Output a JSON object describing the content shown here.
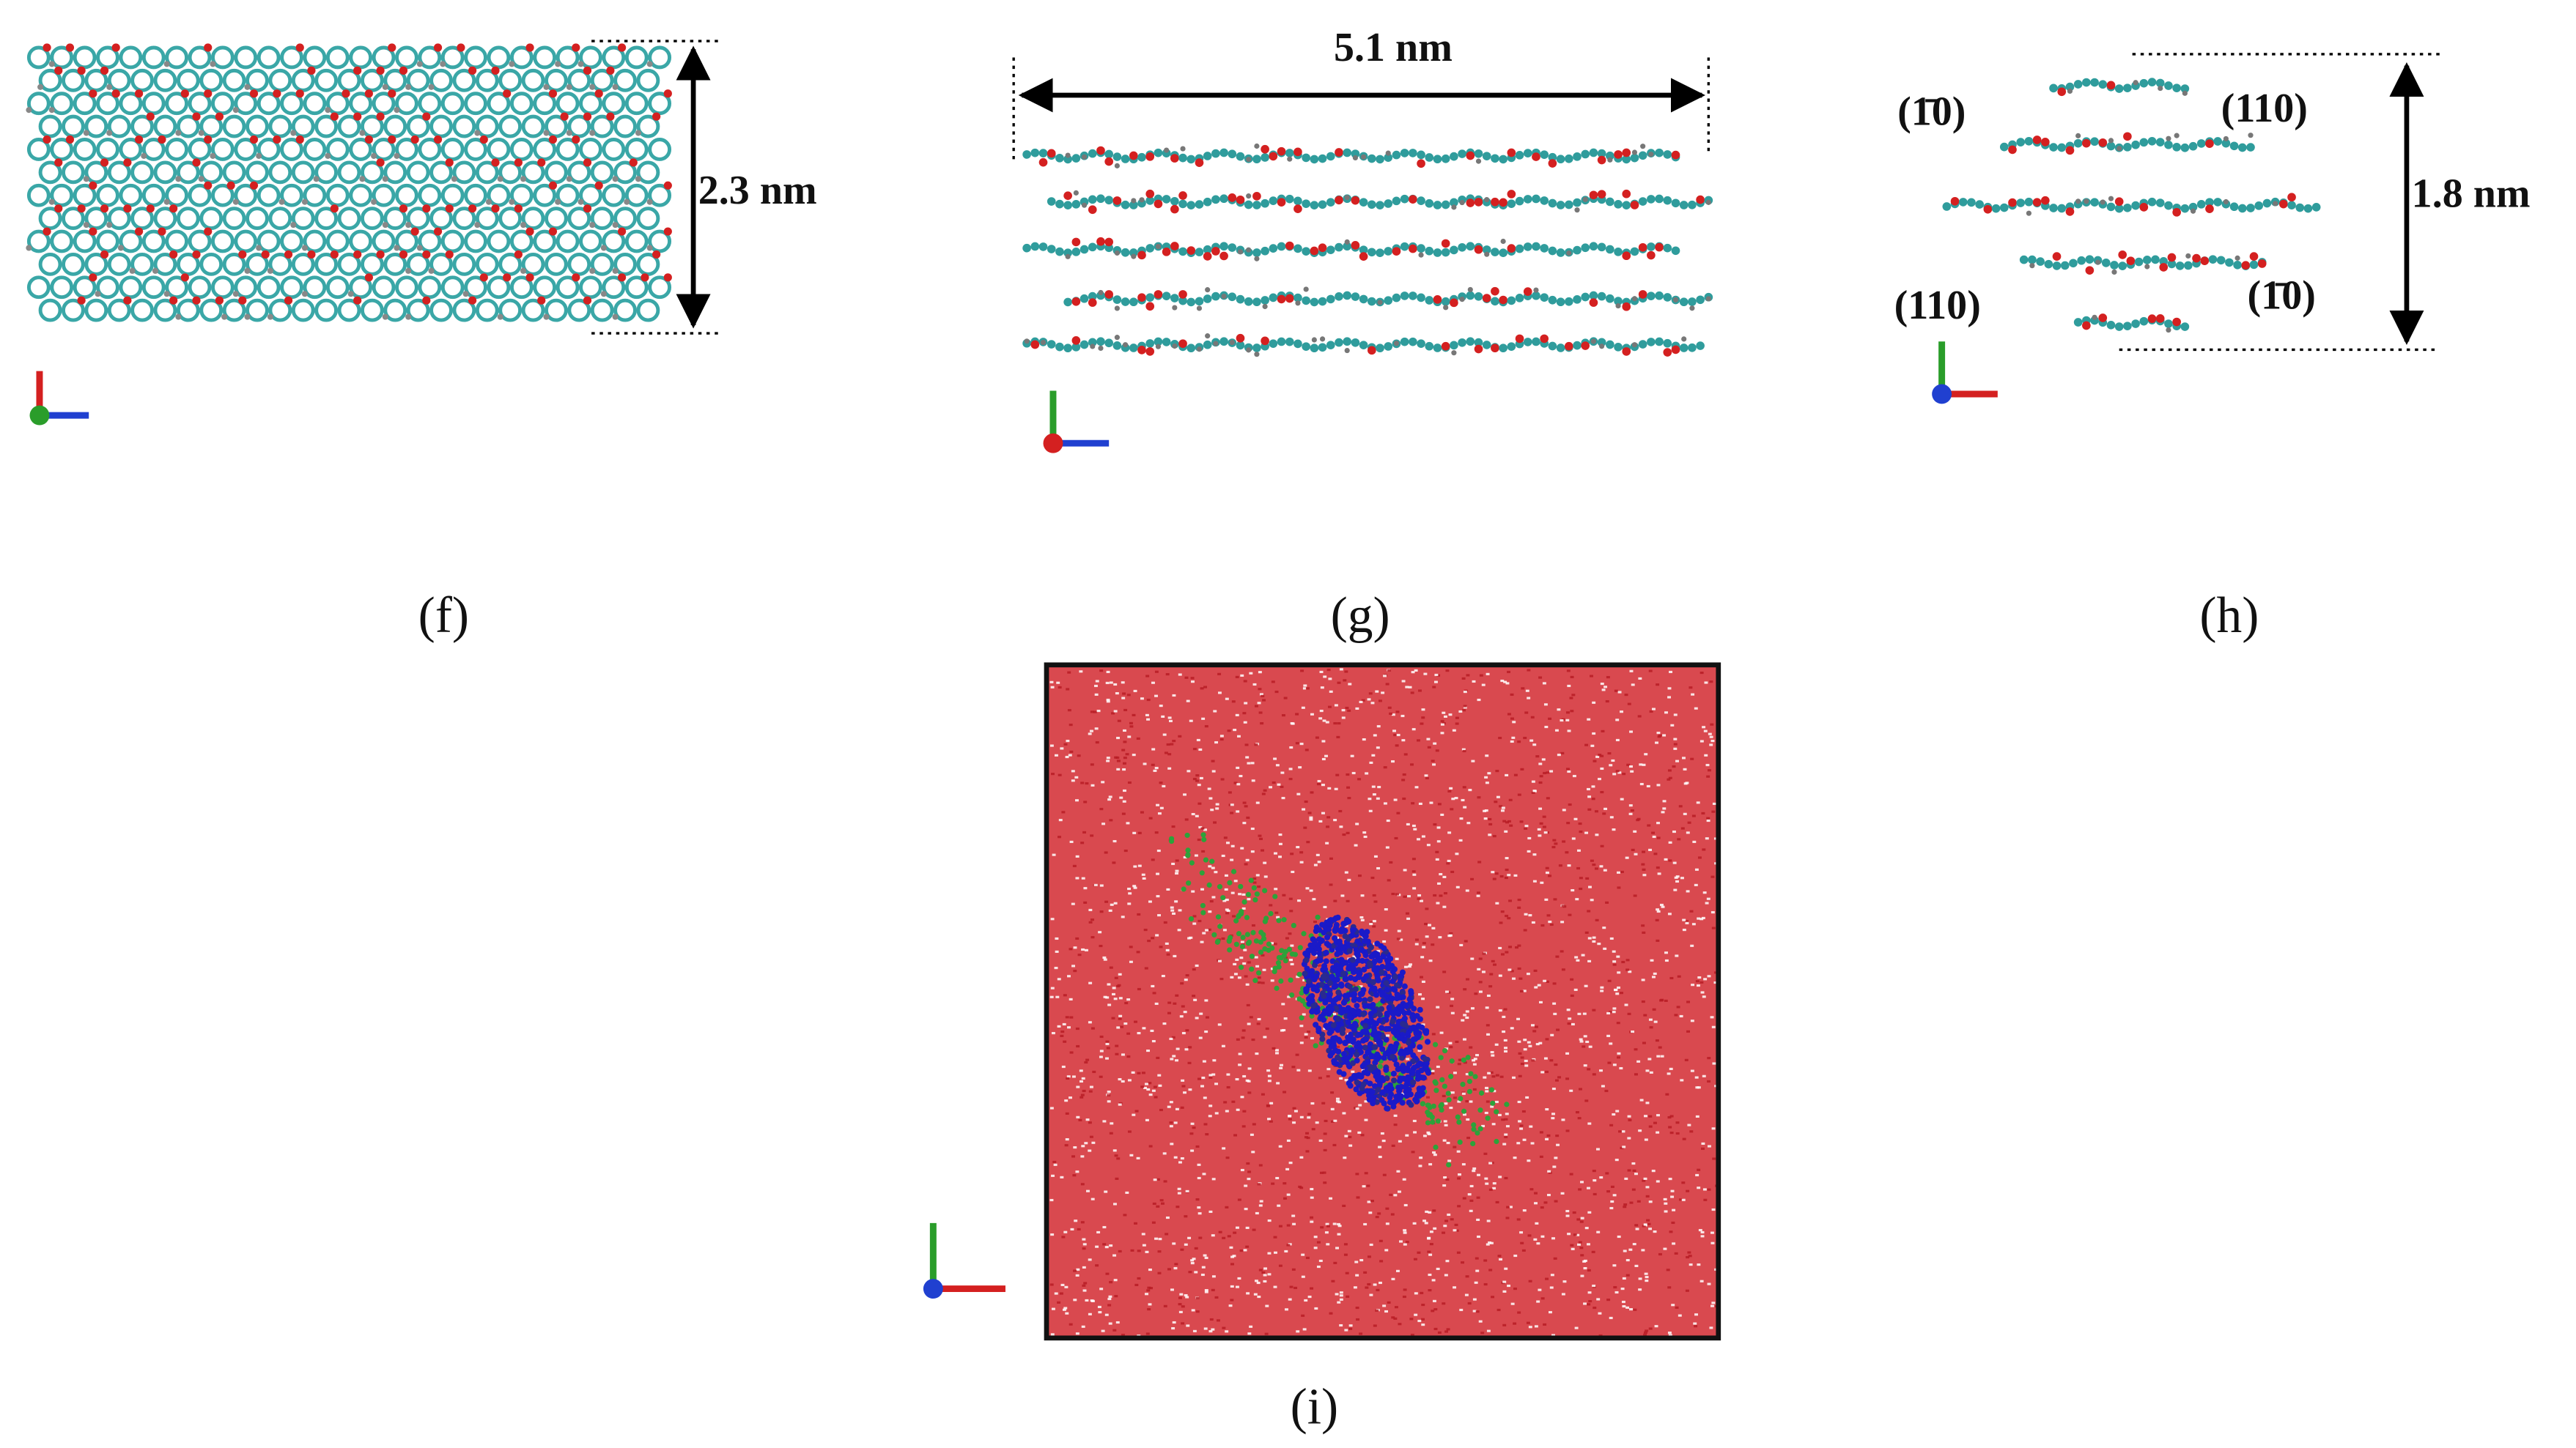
{
  "panels": [
    {
      "label": "(f)",
      "annotations": [
        "2.3 nm"
      ]
    },
    {
      "label": "(g)",
      "annotations": [
        "5.1 nm"
      ]
    },
    {
      "label": "(h)",
      "annotations": [
        "1.8 nm",
        "(1̄0)",
        "(110)",
        "(110)",
        "(1̄0)"
      ]
    },
    {
      "label": "(i)"
    }
  ]
}
